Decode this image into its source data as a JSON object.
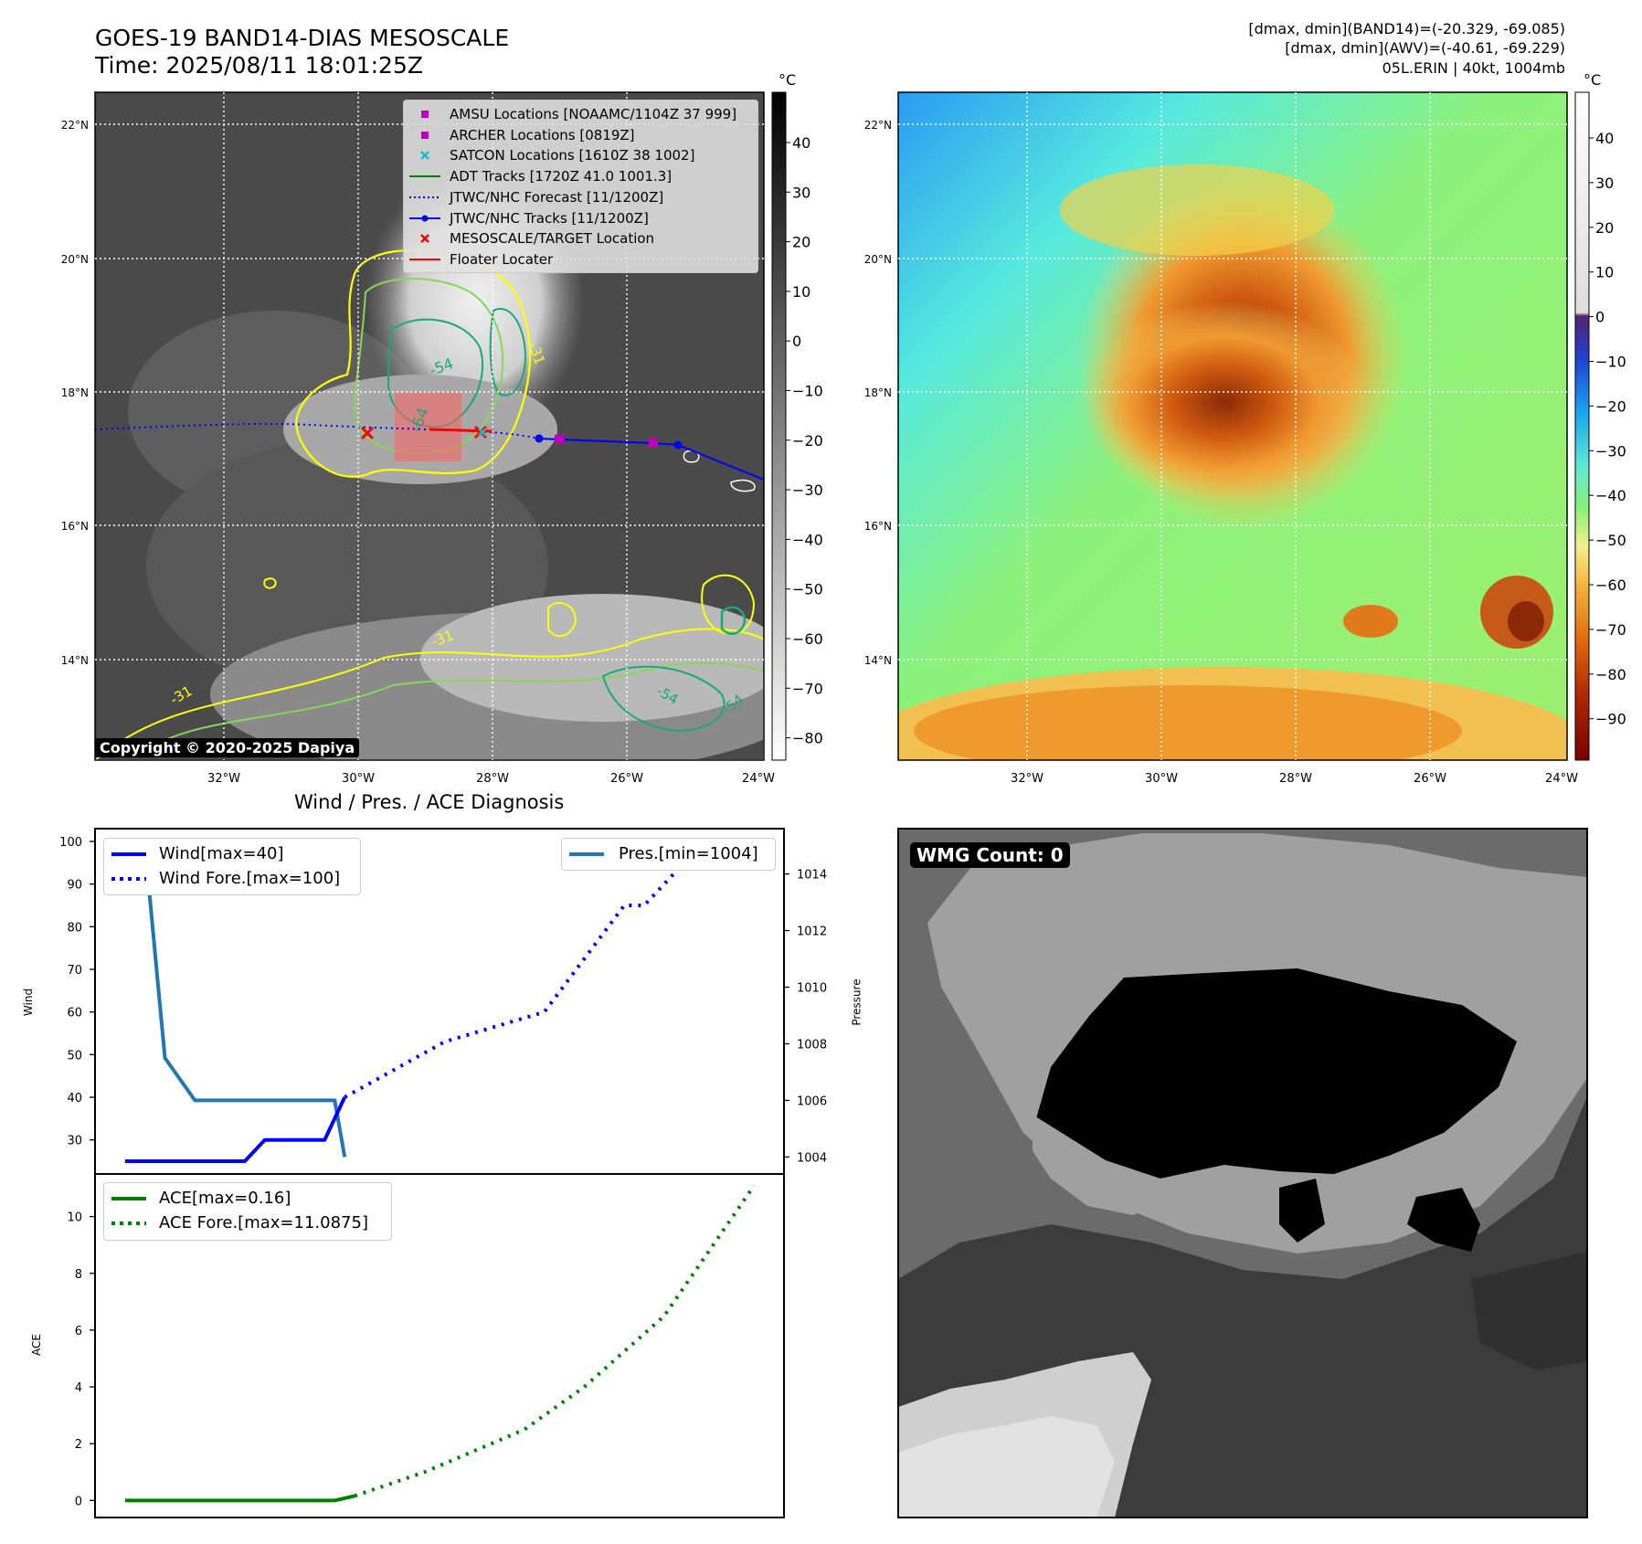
{
  "header": {
    "title_line1": "GOES-19 BAND14-DIAS MESOSCALE",
    "title_line2": "Time: 2025/08/11 18:01:25Z",
    "info_line1": "[dmax, dmin](BAND14)=(-20.329, -69.085)",
    "info_line2": "[dmax, dmin](AWV)=(-40.61, -69.229)",
    "info_line3": "05L.ERIN | 40kt, 1004mb"
  },
  "maps": {
    "lat_labels": [
      "22°N",
      "20°N",
      "18°N",
      "16°N",
      "14°N"
    ],
    "lon_labels": [
      "32°W",
      "30°W",
      "28°W",
      "26°W",
      "24°W"
    ],
    "copyright": "Copyright © 2020-2025 Dapiya",
    "colorbar_unit": "°C",
    "ir_colorbar_ticks": [
      "40",
      "30",
      "20",
      "10",
      "0",
      "−10",
      "−20",
      "−30",
      "−40",
      "−50",
      "−60",
      "−70",
      "−80"
    ],
    "enh_colorbar_ticks": [
      "40",
      "30",
      "20",
      "10",
      "0",
      "−10",
      "−20",
      "−30",
      "−40",
      "−50",
      "−60",
      "−70",
      "−80",
      "−90"
    ],
    "contour_labels": [
      "-64",
      "-54",
      "-31",
      "-54",
      "-54",
      "-31",
      "-31",
      "-54",
      "-54"
    ],
    "legend": [
      {
        "label": "AMSU Locations [NOAAMC/1104Z 37 999]",
        "color": "#bf00bf",
        "marker": "square"
      },
      {
        "label": "ARCHER Locations [0819Z]",
        "color": "#bf00bf",
        "marker": "square"
      },
      {
        "label": "SATCON Locations [1610Z 38 1002]",
        "color": "#17becf",
        "marker": "x"
      },
      {
        "label": "ADT Tracks [1720Z 41.0 1001.3]",
        "color": "#008000",
        "marker": "line"
      },
      {
        "label": "JTWC/NHC Forecast [11/1200Z]",
        "color": "#0000ff",
        "marker": "dotted"
      },
      {
        "label": "JTWC/NHC Tracks [11/1200Z]",
        "color": "#0000ff",
        "marker": "line-dot"
      },
      {
        "label": "MESOSCALE/TARGET Location",
        "color": "#ff0000",
        "marker": "x"
      },
      {
        "label": "Floater Locater",
        "color": "#ff0000",
        "marker": "line"
      }
    ]
  },
  "wmg": {
    "label": "WMG Count: 0"
  },
  "chart_data": [
    {
      "type": "line",
      "title": "Wind / Pres. / ACE Diagnosis",
      "ylabel": "Wind",
      "ylim": [
        22,
        103
      ],
      "yticks": [
        "30",
        "40",
        "50",
        "60",
        "70",
        "80",
        "90",
        "100"
      ],
      "legend": [
        "Wind[max=40]",
        "Wind Fore.[max=100]"
      ],
      "series": [
        {
          "name": "Wind[max=40]",
          "style": "solid",
          "color": "#0000ff",
          "x": [
            0,
            2,
            4,
            6,
            7,
            8,
            10,
            11
          ],
          "y": [
            25,
            25,
            25,
            25,
            30,
            30,
            30,
            40
          ]
        },
        {
          "name": "Wind Fore.[max=100]",
          "style": "dotted",
          "color": "#0000ff",
          "x": [
            11,
            16,
            21,
            25,
            26,
            28,
            31
          ],
          "y": [
            40,
            53,
            60,
            85,
            85,
            95,
            95
          ]
        }
      ]
    },
    {
      "type": "line",
      "ylabel": "Pressure",
      "ylim": [
        1003.4,
        1015.6
      ],
      "yticks": [
        "1004",
        "1006",
        "1008",
        "1010",
        "1012",
        "1014"
      ],
      "legend": [
        "Pres.[min=1004]"
      ],
      "series": [
        {
          "name": "Pres.[min=1004]",
          "style": "solid",
          "color": "#1f77b4",
          "x": [
            0,
            1,
            2,
            3.5,
            5.5,
            10.5,
            11
          ],
          "y": [
            1015,
            1015,
            1007.5,
            1006,
            1006,
            1006,
            1004
          ]
        }
      ]
    },
    {
      "type": "line",
      "ylabel": "ACE",
      "ylim": [
        -0.6,
        11.5
      ],
      "yticks": [
        "0",
        "2",
        "4",
        "6",
        "8",
        "10"
      ],
      "legend": [
        "ACE[max=0.16]",
        "ACE Fore.[max=11.0875]"
      ],
      "series": [
        {
          "name": "ACE[max=0.16]",
          "style": "solid",
          "color": "#008000",
          "x": [
            0,
            10.5,
            11.5
          ],
          "y": [
            0,
            0,
            0.16
          ]
        },
        {
          "name": "ACE Fore.[max=11.0875]",
          "style": "dotted",
          "color": "#008000",
          "x": [
            11.5,
            15,
            20,
            23,
            27,
            31.5
          ],
          "y": [
            0.16,
            1,
            2.5,
            4,
            6.5,
            11.0875
          ]
        }
      ]
    }
  ]
}
